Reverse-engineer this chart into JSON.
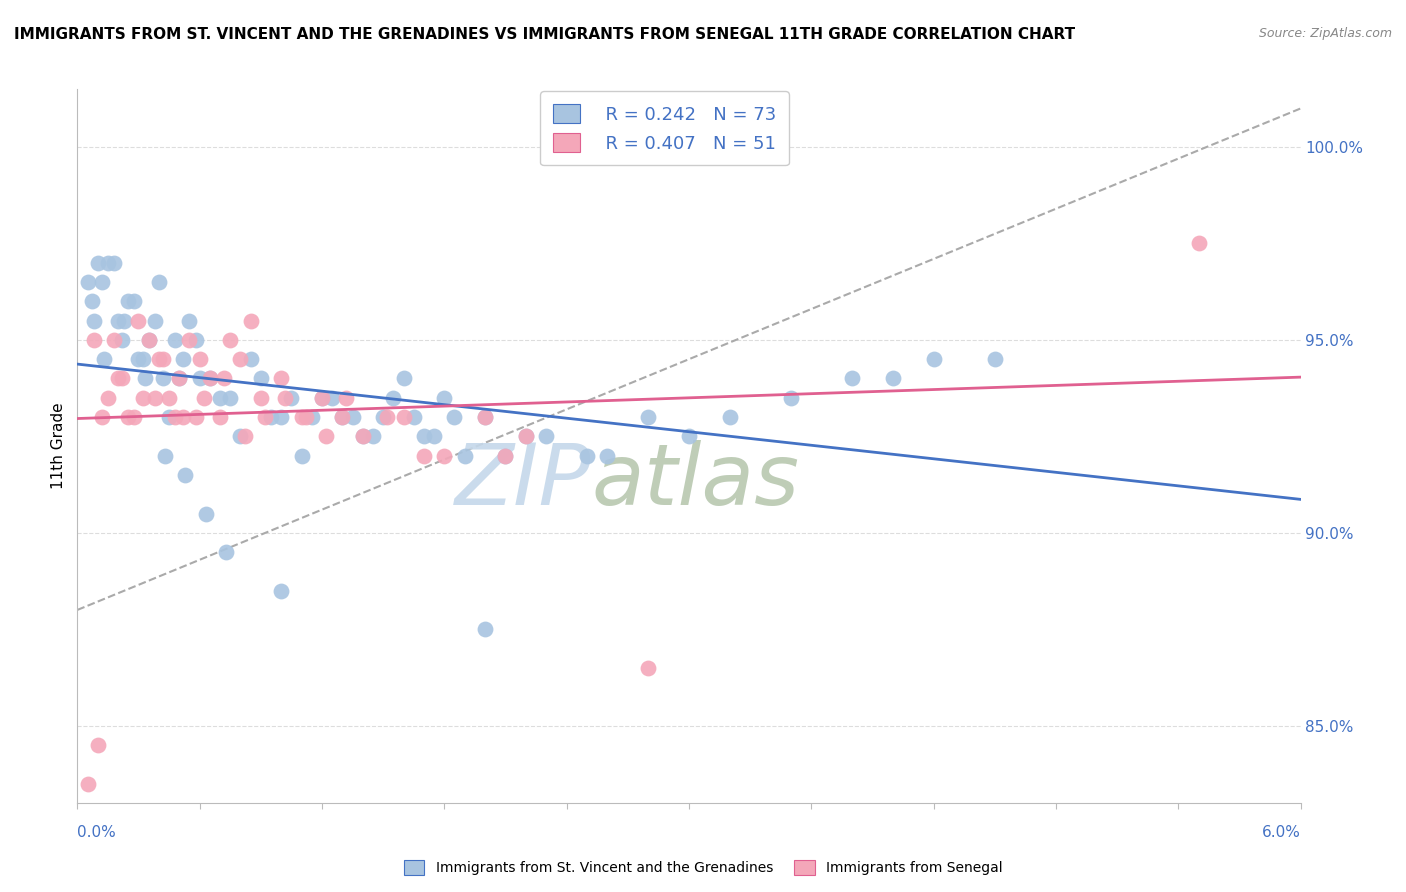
{
  "title": "IMMIGRANTS FROM ST. VINCENT AND THE GRENADINES VS IMMIGRANTS FROM SENEGAL 11TH GRADE CORRELATION CHART",
  "source": "Source: ZipAtlas.com",
  "ylabel": "11th Grade",
  "legend_blue_r": "R = 0.242",
  "legend_blue_n": "N = 73",
  "legend_pink_r": "R = 0.407",
  "legend_pink_n": "N = 51",
  "legend_blue_label": "Immigrants from St. Vincent and the Grenadines",
  "legend_pink_label": "Immigrants from Senegal",
  "blue_color": "#a8c4e0",
  "blue_line_color": "#4472c4",
  "pink_color": "#f4a7b9",
  "pink_line_color": "#e06090",
  "dashed_line_color": "#aaaaaa",
  "right_axis_color": "#4472c4",
  "watermark_color": "#c8d8e8",
  "blue_scatter_x": [
    0.05,
    0.08,
    0.1,
    0.12,
    0.15,
    0.18,
    0.2,
    0.22,
    0.25,
    0.28,
    0.3,
    0.32,
    0.35,
    0.38,
    0.4,
    0.42,
    0.45,
    0.48,
    0.5,
    0.52,
    0.55,
    0.58,
    0.6,
    0.65,
    0.7,
    0.75,
    0.8,
    0.85,
    0.9,
    0.95,
    1.0,
    1.05,
    1.1,
    1.15,
    1.2,
    1.25,
    1.3,
    1.35,
    1.4,
    1.45,
    1.5,
    1.55,
    1.6,
    1.65,
    1.7,
    1.75,
    1.8,
    1.85,
    1.9,
    2.0,
    2.1,
    2.2,
    2.3,
    2.5,
    2.6,
    2.8,
    3.0,
    3.2,
    3.5,
    3.8,
    4.0,
    4.2,
    4.5,
    0.07,
    0.13,
    0.23,
    0.33,
    0.43,
    0.53,
    0.63,
    0.73,
    1.0,
    2.0
  ],
  "blue_scatter_y": [
    96.5,
    95.5,
    97.0,
    96.5,
    97.0,
    97.0,
    95.5,
    95.0,
    96.0,
    96.0,
    94.5,
    94.5,
    95.0,
    95.5,
    96.5,
    94.0,
    93.0,
    95.0,
    94.0,
    94.5,
    95.5,
    95.0,
    94.0,
    94.0,
    93.5,
    93.5,
    92.5,
    94.5,
    94.0,
    93.0,
    93.0,
    93.5,
    92.0,
    93.0,
    93.5,
    93.5,
    93.0,
    93.0,
    92.5,
    92.5,
    93.0,
    93.5,
    94.0,
    93.0,
    92.5,
    92.5,
    93.5,
    93.0,
    92.0,
    93.0,
    92.0,
    92.5,
    92.5,
    92.0,
    92.0,
    93.0,
    92.5,
    93.0,
    93.5,
    94.0,
    94.0,
    94.5,
    94.5,
    96.0,
    94.5,
    95.5,
    94.0,
    92.0,
    91.5,
    90.5,
    89.5,
    88.5,
    87.5
  ],
  "pink_scatter_x": [
    0.05,
    0.08,
    0.1,
    0.12,
    0.15,
    0.18,
    0.2,
    0.22,
    0.25,
    0.28,
    0.3,
    0.32,
    0.35,
    0.38,
    0.4,
    0.42,
    0.45,
    0.48,
    0.5,
    0.52,
    0.55,
    0.58,
    0.6,
    0.62,
    0.65,
    0.7,
    0.72,
    0.75,
    0.8,
    0.82,
    0.85,
    0.9,
    0.92,
    1.0,
    1.02,
    1.1,
    1.12,
    1.2,
    1.22,
    1.3,
    1.32,
    1.4,
    1.52,
    1.6,
    1.7,
    1.8,
    2.0,
    2.1,
    2.2,
    2.8,
    5.5
  ],
  "pink_scatter_y": [
    83.5,
    95.0,
    84.5,
    93.0,
    93.5,
    95.0,
    94.0,
    94.0,
    93.0,
    93.0,
    95.5,
    93.5,
    95.0,
    93.5,
    94.5,
    94.5,
    93.5,
    93.0,
    94.0,
    93.0,
    95.0,
    93.0,
    94.5,
    93.5,
    94.0,
    93.0,
    94.0,
    95.0,
    94.5,
    92.5,
    95.5,
    93.5,
    93.0,
    94.0,
    93.5,
    93.0,
    93.0,
    93.5,
    92.5,
    93.0,
    93.5,
    92.5,
    93.0,
    93.0,
    92.0,
    92.0,
    93.0,
    92.0,
    92.5,
    86.5,
    97.5
  ],
  "xmin": 0.0,
  "xmax": 6.0,
  "ymin": 83.0,
  "ymax": 101.5
}
